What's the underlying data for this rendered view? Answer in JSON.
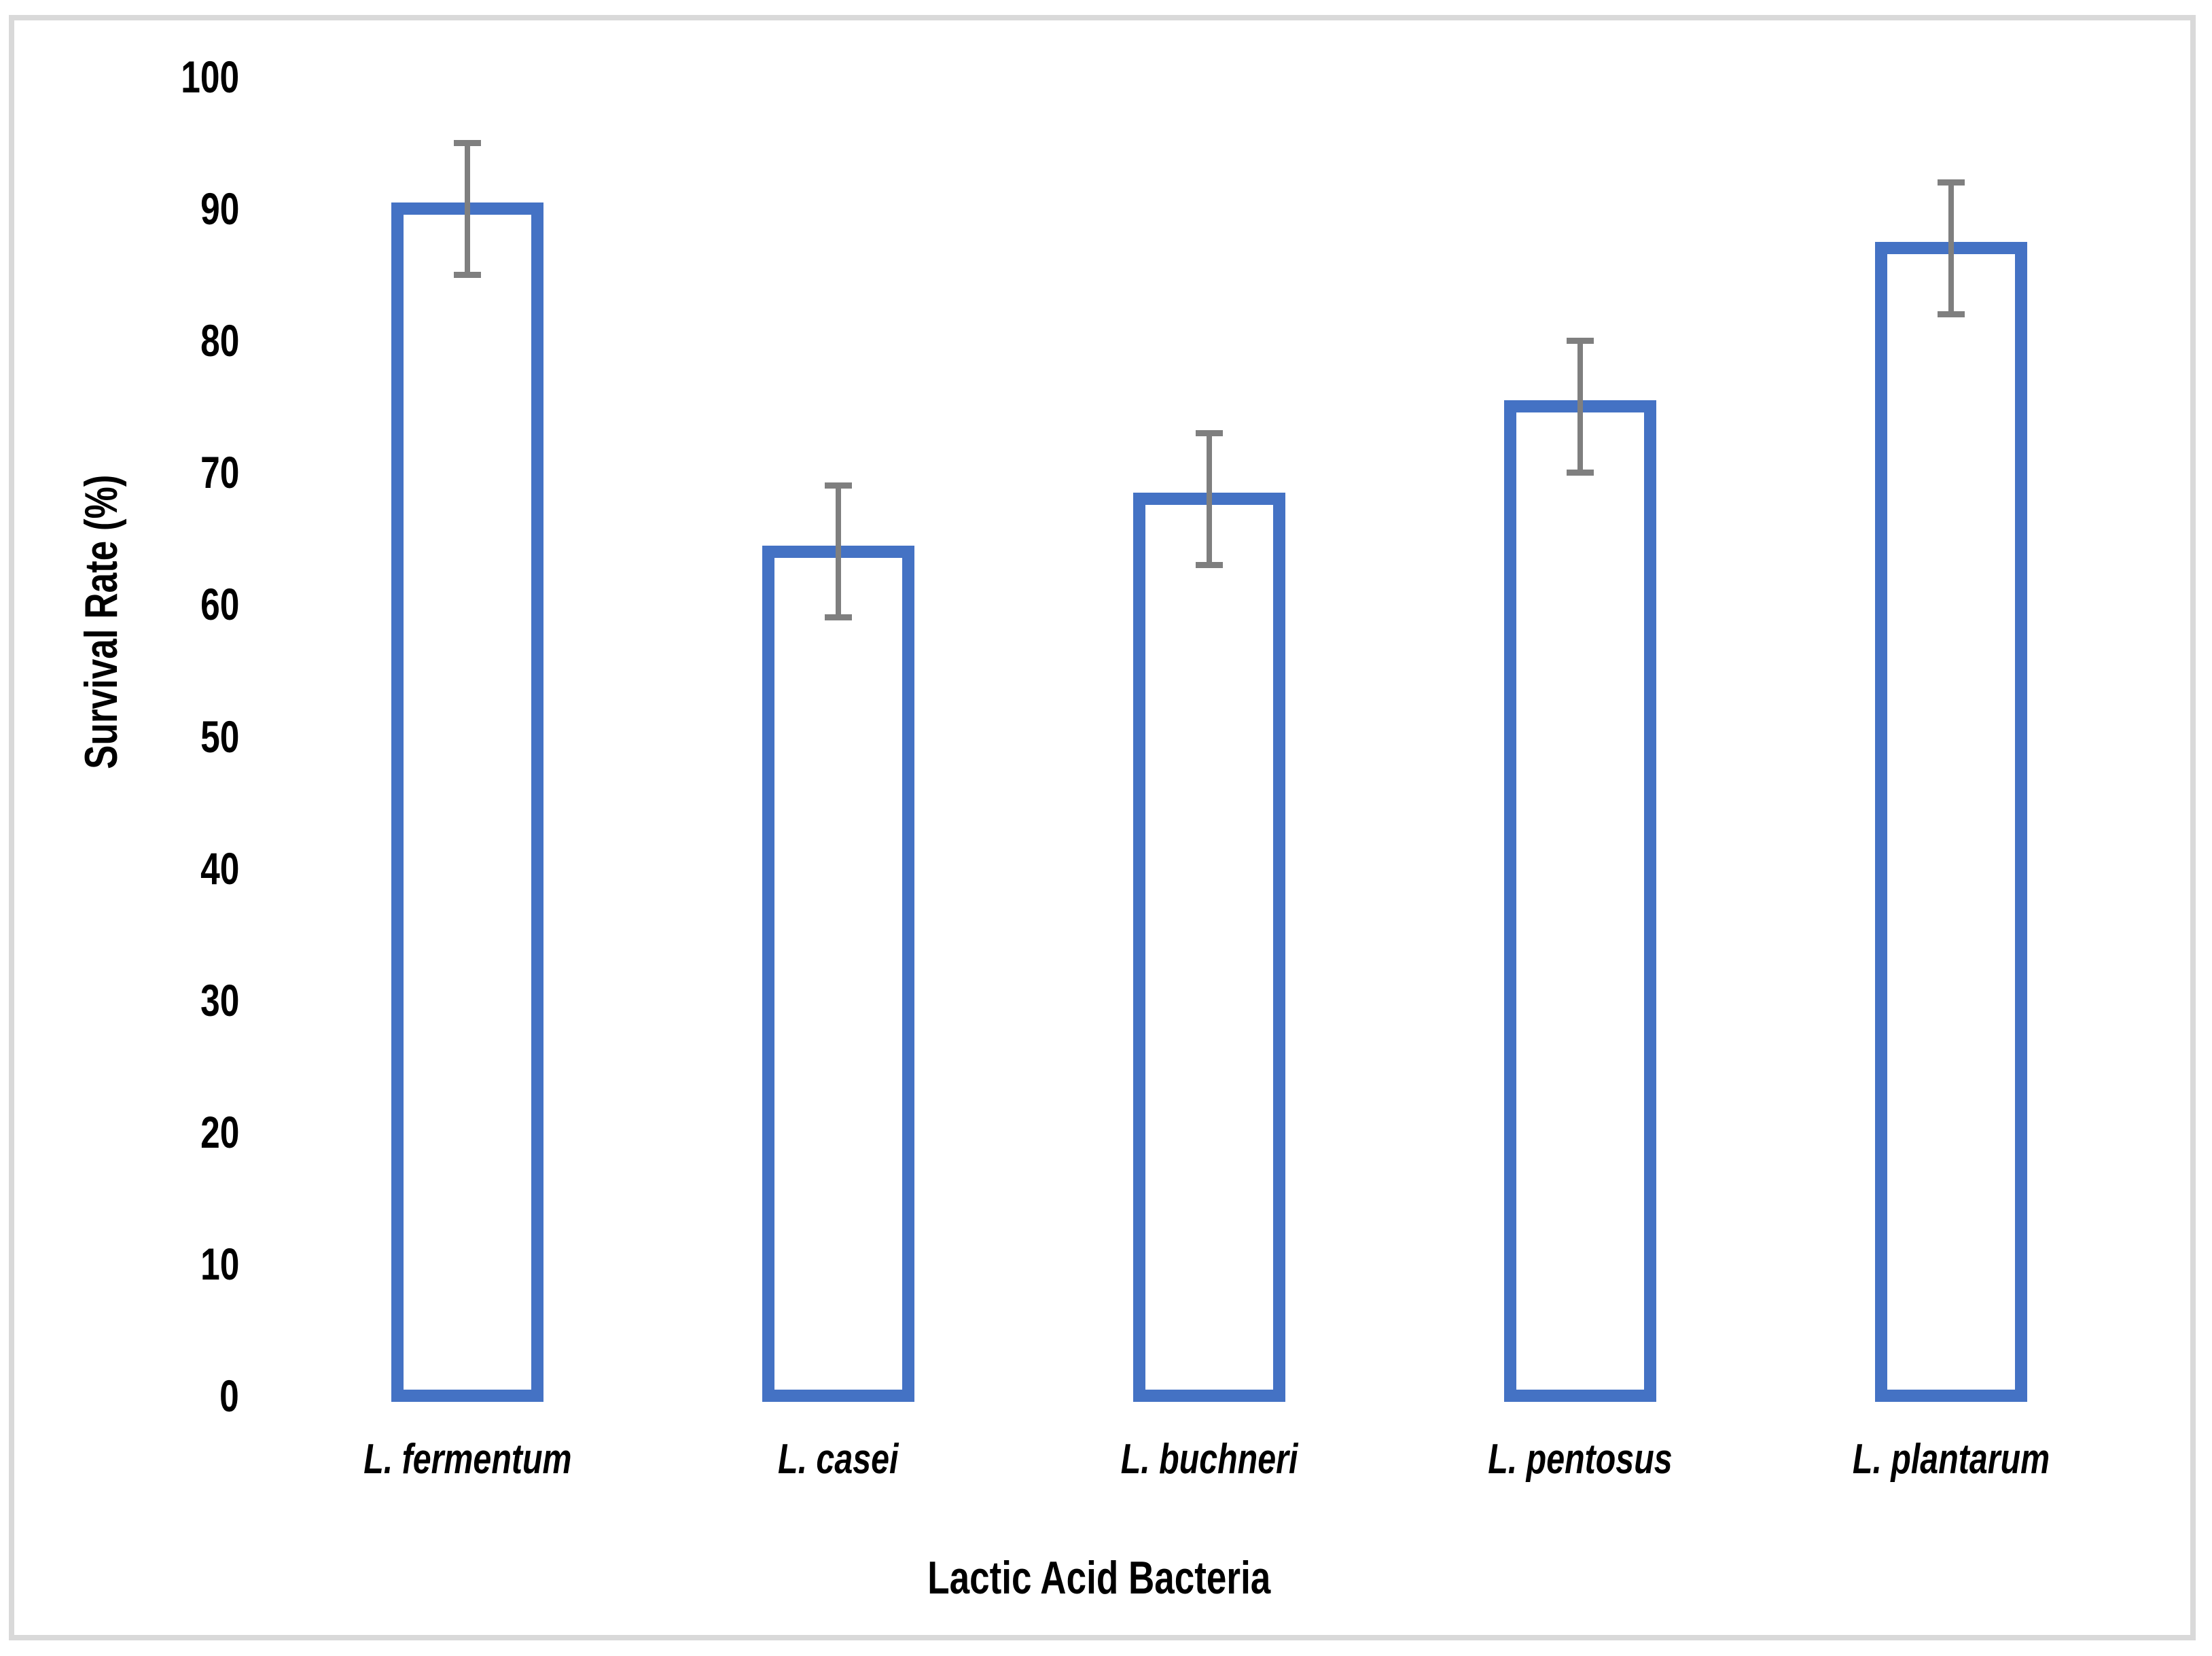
{
  "figure": {
    "background": "#ffffff",
    "border_color": "#d9d9d9"
  },
  "chart_data": {
    "type": "bar",
    "title": "",
    "xlabel": "Lactic Acid Bacteria",
    "ylabel": "Survival Rate (%)",
    "categories": [
      "L. fermentum",
      "L. casei",
      "L. buchneri",
      "L. pentosus",
      "L. plantarum"
    ],
    "values": [
      90,
      64,
      68,
      75,
      87
    ],
    "error_bars": [
      5,
      5,
      5,
      5,
      5
    ],
    "ylim": [
      0,
      100
    ],
    "yticks": [
      0,
      10,
      20,
      30,
      40,
      50,
      60,
      70,
      80,
      90,
      100
    ],
    "grid": false,
    "legend": null,
    "axis_lines": "none",
    "colors": {
      "bar_outline": "#4472c4",
      "bar_fill": "#ffffff",
      "error_bar": "#7f7f7f",
      "text": "#000000"
    }
  }
}
